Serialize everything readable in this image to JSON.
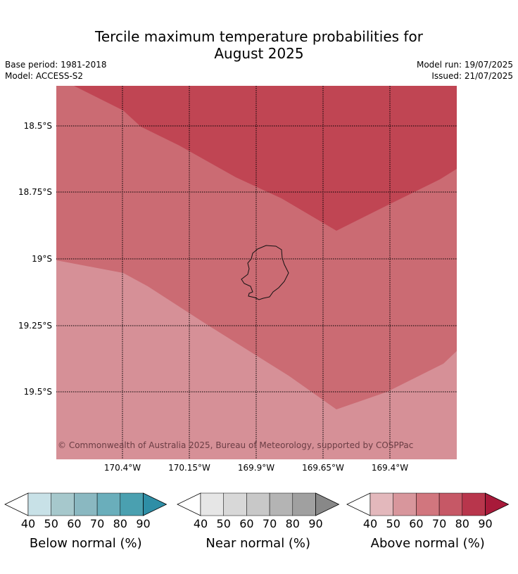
{
  "title": "Tercile maximum temperature probabilities for",
  "title_line2": "August 2025",
  "meta_left": [
    "Base period: 1981-2018",
    "Model: ACCESS-S2"
  ],
  "meta_right": [
    "Model run: 19/07/2025",
    "Issued: 21/07/2025"
  ],
  "copyright": "© Commonwealth of Australia 2025, Bureau of Meteorology, supported by COSPPac",
  "map": {
    "lat_labels": [
      "18.5°S",
      "18.75°S",
      "19°S",
      "19.25°S",
      "19.5°S"
    ],
    "lon_labels": [
      "170.4°W",
      "170.15°W",
      "169.9°W",
      "169.65°W",
      "169.4°W"
    ],
    "region_colors": {
      "above_80": "#c04553",
      "above_70": "#cb6b73",
      "above_60": "#d69097"
    },
    "island": "Niue"
  },
  "colorbars": [
    {
      "label": "Below normal (%)",
      "ticks": [
        "40",
        "50",
        "60",
        "70",
        "80",
        "90"
      ],
      "colors": [
        "#ffffff",
        "#c8e1e7",
        "#a6c8cc",
        "#8ab8c1",
        "#6aaebb",
        "#4aa0b0",
        "#2e8ea6"
      ]
    },
    {
      "label": "Near normal (%)",
      "ticks": [
        "40",
        "50",
        "60",
        "70",
        "80",
        "90"
      ],
      "colors": [
        "#ffffff",
        "#e6e6e6",
        "#d8d8d8",
        "#c8c8c8",
        "#b4b4b4",
        "#a0a0a0",
        "#888888"
      ]
    },
    {
      "label": "Above normal (%)",
      "ticks": [
        "40",
        "50",
        "60",
        "70",
        "80",
        "90"
      ],
      "colors": [
        "#ffffff",
        "#e3b8bc",
        "#d8969c",
        "#d1767e",
        "#c65866",
        "#b8364c",
        "#a81a3a"
      ]
    }
  ]
}
